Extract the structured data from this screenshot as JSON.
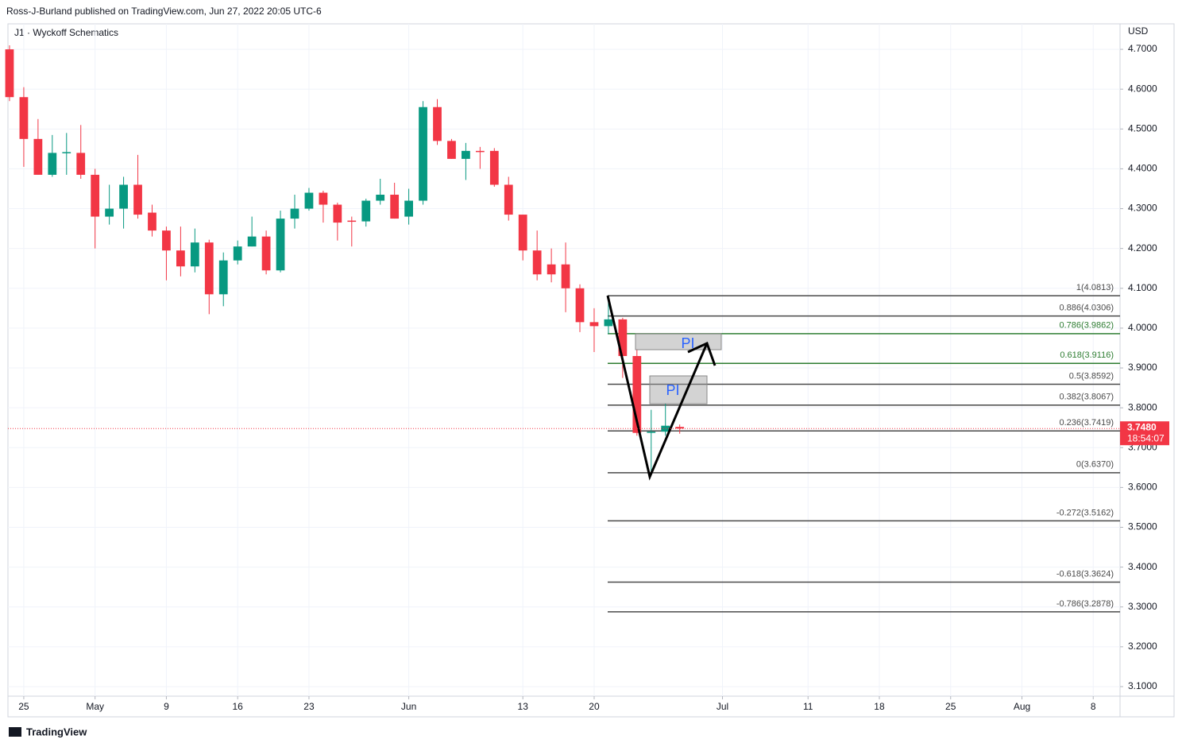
{
  "header": {
    "publisher": "Ross-J-Burland published on TradingView.com, Jun 27, 2022 20:05 UTC-6",
    "symbol": "J1 · Wyckoff Schematics",
    "currency": "USD",
    "logo": "TradingView"
  },
  "chart_data": {
    "type": "candlestick",
    "up_color": "#089981",
    "down_color": "#f23645",
    "open": [
      4.7,
      4.58,
      4.475,
      4.385,
      4.44,
      4.44,
      4.385,
      4.28,
      4.3,
      4.36,
      4.29,
      4.245,
      4.195,
      4.155,
      4.215,
      4.085,
      4.17,
      4.205,
      4.23,
      4.145,
      4.275,
      4.3,
      4.34,
      4.31,
      4.27,
      4.268,
      4.32,
      4.335,
      4.28,
      4.32,
      4.555,
      4.47,
      4.425,
      4.445,
      4.445,
      4.36,
      4.285,
      4.195,
      4.16,
      4.16,
      4.1,
      4.015,
      4.005,
      4.022,
      3.93,
      3.737,
      3.74,
      3.752
    ],
    "high": [
      4.71,
      4.605,
      4.525,
      4.485,
      4.49,
      4.51,
      4.4,
      4.36,
      4.38,
      4.435,
      4.31,
      4.255,
      4.255,
      4.25,
      4.222,
      4.19,
      4.22,
      4.28,
      4.245,
      4.295,
      4.335,
      4.352,
      4.345,
      4.315,
      4.28,
      4.325,
      4.375,
      4.365,
      4.35,
      4.57,
      4.575,
      4.475,
      4.465,
      4.455,
      4.452,
      4.38,
      4.285,
      4.245,
      4.2,
      4.215,
      4.11,
      4.05,
      4.08,
      4.026,
      3.945,
      3.795,
      3.81,
      3.758
    ],
    "low": [
      4.57,
      4.405,
      4.385,
      4.38,
      4.385,
      4.375,
      4.2,
      4.26,
      4.25,
      4.275,
      4.23,
      4.12,
      4.13,
      4.14,
      4.035,
      4.055,
      4.16,
      4.205,
      4.135,
      4.14,
      4.25,
      4.295,
      4.265,
      4.22,
      4.205,
      4.255,
      4.31,
      4.275,
      4.26,
      4.31,
      4.46,
      4.425,
      4.372,
      4.4,
      4.355,
      4.27,
      4.17,
      4.12,
      4.115,
      4.04,
      3.99,
      3.94,
      3.985,
      3.875,
      3.73,
      3.637,
      3.73,
      3.735
    ],
    "close": [
      4.58,
      4.475,
      4.385,
      4.44,
      4.442,
      4.385,
      4.28,
      4.3,
      4.36,
      4.285,
      4.245,
      4.195,
      4.155,
      4.215,
      4.085,
      4.17,
      4.205,
      4.23,
      4.145,
      4.275,
      4.3,
      4.34,
      4.31,
      4.265,
      4.268,
      4.32,
      4.335,
      4.275,
      4.32,
      4.555,
      4.47,
      4.425,
      4.445,
      4.442,
      4.36,
      4.285,
      4.195,
      4.135,
      4.135,
      4.1,
      4.015,
      4.005,
      4.022,
      3.93,
      3.737,
      3.74,
      3.755,
      3.748
    ],
    "xlim": [
      -0.11,
      77.88
    ],
    "xticks": [
      {
        "value": 1,
        "label": "25"
      },
      {
        "value": 6,
        "label": "May"
      },
      {
        "value": 11,
        "label": "9"
      },
      {
        "value": 16,
        "label": "16"
      },
      {
        "value": 21,
        "label": "23"
      },
      {
        "value": 28,
        "label": "Jun"
      },
      {
        "value": 36,
        "label": "13"
      },
      {
        "value": 41,
        "label": "20"
      },
      {
        "value": 50,
        "label": "Jul"
      },
      {
        "value": 56,
        "label": "11"
      },
      {
        "value": 61,
        "label": "18"
      },
      {
        "value": 66,
        "label": "25"
      },
      {
        "value": 71,
        "label": "Aug"
      },
      {
        "value": 76,
        "label": "8"
      }
    ],
    "ylim": [
      3.076,
      4.764
    ],
    "yticks": [
      {
        "value": 3.1,
        "label": "3.1000"
      },
      {
        "value": 3.2,
        "label": "3.2000"
      },
      {
        "value": 3.3,
        "label": "3.3000"
      },
      {
        "value": 3.4,
        "label": "3.4000"
      },
      {
        "value": 3.5,
        "label": "3.5000"
      },
      {
        "value": 3.6,
        "label": "3.6000"
      },
      {
        "value": 3.7,
        "label": "3.7000"
      },
      {
        "value": 3.8,
        "label": "3.8000"
      },
      {
        "value": 3.9,
        "label": "3.9000"
      },
      {
        "value": 4.0,
        "label": "4.0000"
      },
      {
        "value": 4.1,
        "label": "4.1000"
      },
      {
        "value": 4.2,
        "label": "4.2000"
      },
      {
        "value": 4.3,
        "label": "4.3000"
      },
      {
        "value": 4.4,
        "label": "4.4000"
      },
      {
        "value": 4.5,
        "label": "4.5000"
      },
      {
        "value": 4.6,
        "label": "4.6000"
      },
      {
        "value": 4.7,
        "label": "4.7000"
      }
    ],
    "grid": true,
    "last_price": {
      "value": 3.748,
      "label": "3.7480",
      "countdown": "18:54:07",
      "color": "#f23645"
    },
    "fib_levels": [
      {
        "value": 4.0813,
        "label": "1(4.0813)",
        "color": "#4a4a4a"
      },
      {
        "value": 4.0306,
        "label": "0.886(4.0306)",
        "color": "#4a4a4a"
      },
      {
        "value": 3.9862,
        "label": "0.786(3.9862)",
        "color": "#2e7d32"
      },
      {
        "value": 3.9116,
        "label": "0.618(3.9116)",
        "color": "#2e7d32"
      },
      {
        "value": 3.8592,
        "label": "0.5(3.8592)",
        "color": "#4a4a4a"
      },
      {
        "value": 3.8067,
        "label": "0.382(3.8067)",
        "color": "#4a4a4a"
      },
      {
        "value": 3.7419,
        "label": "0.236(3.7419)",
        "color": "#4a4a4a"
      },
      {
        "value": 3.637,
        "label": "0(3.6370)",
        "color": "#4a4a4a"
      },
      {
        "value": 3.5162,
        "label": "-0.272(3.5162)",
        "color": "#4a4a4a"
      },
      {
        "value": 3.3624,
        "label": "-0.618(3.3624)",
        "color": "#4a4a4a"
      },
      {
        "value": 3.2878,
        "label": "-0.786(3.2878)",
        "color": "#4a4a4a"
      }
    ],
    "annotations": [
      "PI",
      "PI"
    ]
  }
}
